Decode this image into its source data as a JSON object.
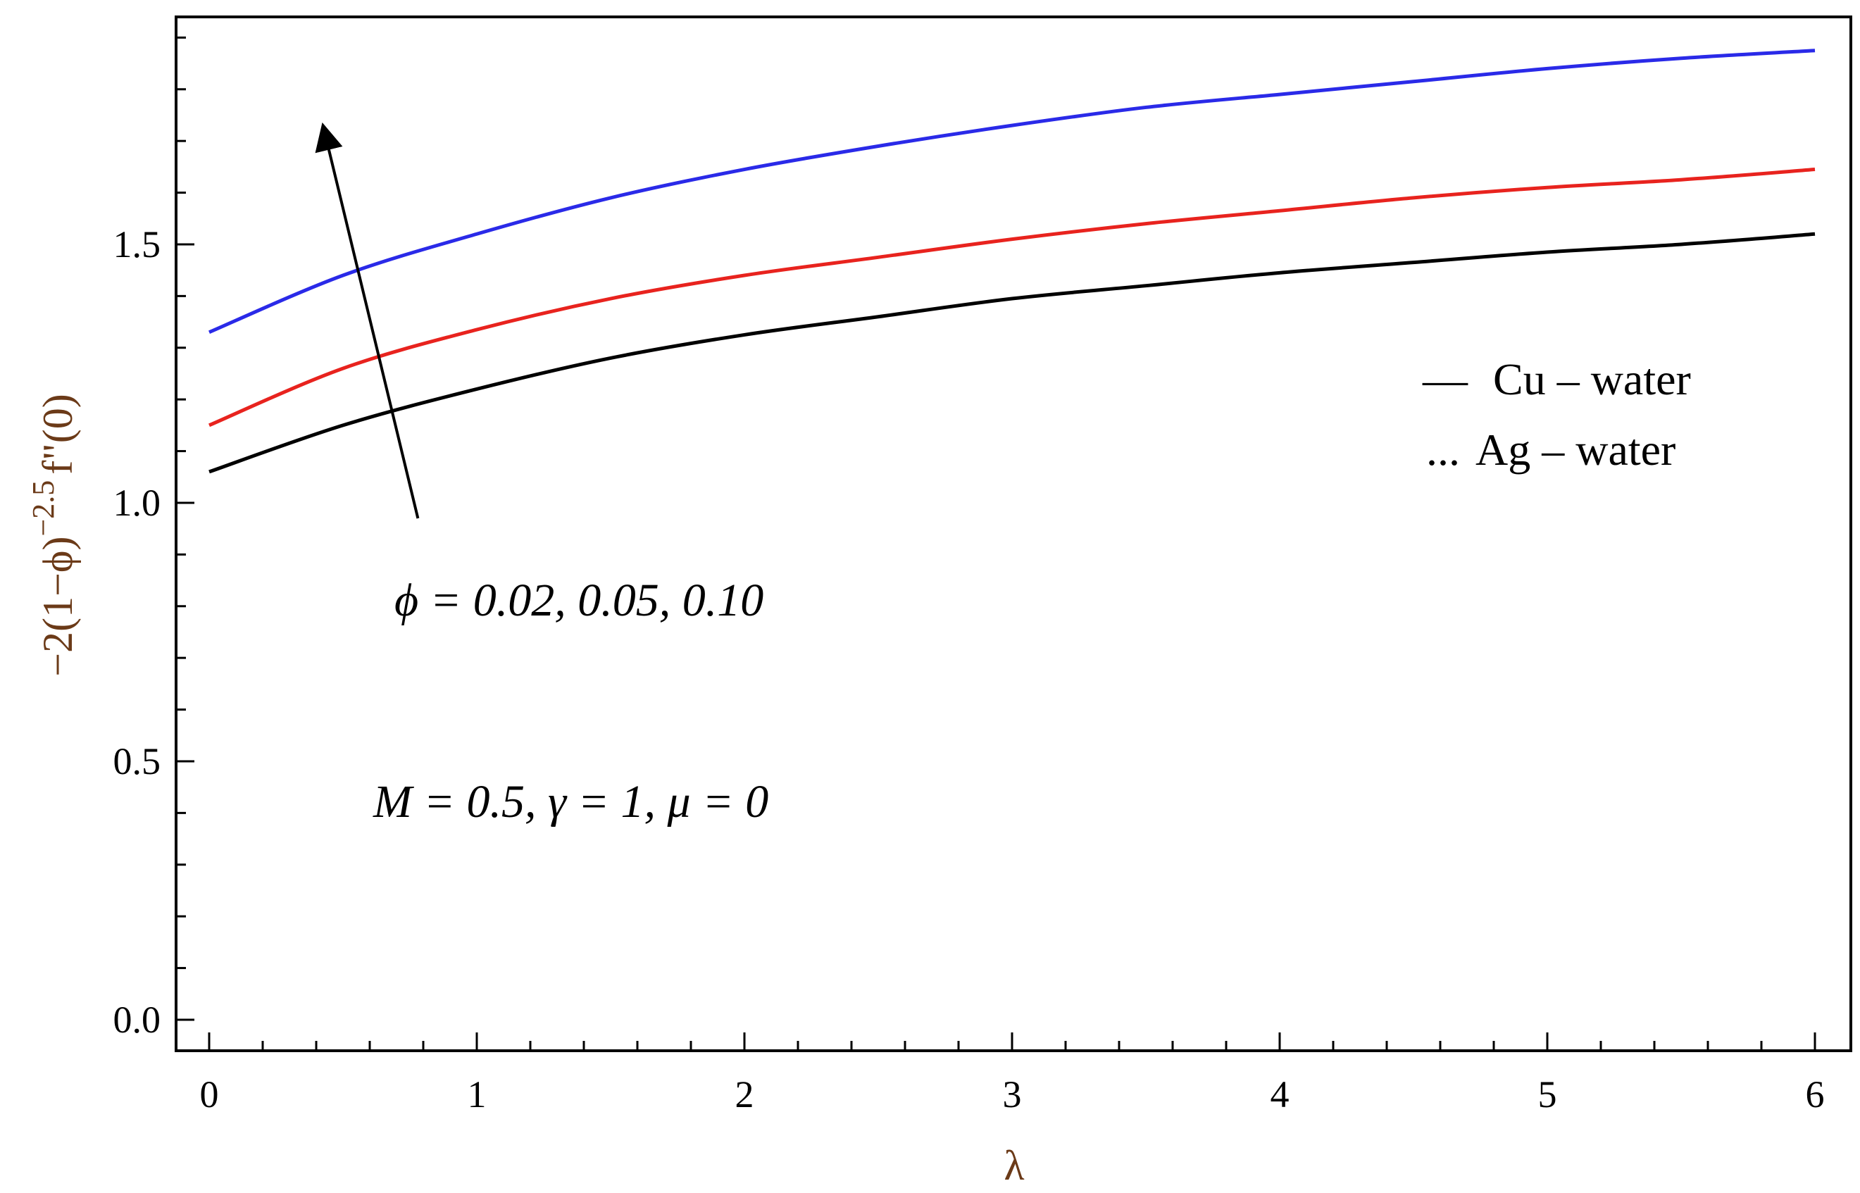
{
  "chart_data": {
    "type": "line",
    "title": "",
    "xlabel": "λ",
    "ylabel": "-2(1-ϕ)^-2.5 f''(0)",
    "ylabel_parts": {
      "base": "−2(1−ϕ)",
      "exponent": "−2.5",
      "tail": "f\"(0)"
    },
    "xlim": [
      0,
      6
    ],
    "ylim": [
      -0.06,
      1.94
    ],
    "x_ticks": [
      0,
      1,
      2,
      3,
      4,
      5,
      6
    ],
    "x_tick_labels": [
      "0",
      "1",
      "2",
      "3",
      "4",
      "5",
      "6"
    ],
    "y_ticks": [
      0.0,
      0.5,
      1.0,
      1.5
    ],
    "y_tick_labels": [
      "0.0",
      "0.5",
      "1.0",
      "1.5"
    ],
    "grid": false,
    "series": [
      {
        "color": "#000000",
        "x": [
          0,
          0.5,
          1,
          1.5,
          2,
          2.5,
          3,
          3.5,
          4,
          4.5,
          5,
          5.5,
          6
        ],
        "values": [
          1.06,
          1.15,
          1.22,
          1.28,
          1.325,
          1.36,
          1.395,
          1.42,
          1.445,
          1.465,
          1.485,
          1.5,
          1.52
        ]
      },
      {
        "color": "#e8231e",
        "x": [
          0,
          0.5,
          1,
          1.5,
          2,
          2.5,
          3,
          3.5,
          4,
          4.5,
          5,
          5.5,
          6
        ],
        "values": [
          1.15,
          1.26,
          1.335,
          1.395,
          1.44,
          1.475,
          1.51,
          1.54,
          1.565,
          1.59,
          1.61,
          1.625,
          1.645
        ]
      },
      {
        "color": "#2a2ae8",
        "x": [
          0,
          0.5,
          1,
          1.5,
          2,
          2.5,
          3,
          3.5,
          4,
          4.5,
          5,
          5.5,
          6
        ],
        "values": [
          1.33,
          1.44,
          1.52,
          1.59,
          1.645,
          1.69,
          1.73,
          1.765,
          1.79,
          1.815,
          1.84,
          1.86,
          1.875
        ]
      }
    ],
    "legend": {
      "position": "right",
      "entries": [
        {
          "marker": "—",
          "label": "Cu – water",
          "style": "solid"
        },
        {
          "marker": "...",
          "label": "Ag – water",
          "style": "dotted"
        }
      ]
    },
    "annotations": {
      "arrow": {
        "from": [
          0.78,
          0.97
        ],
        "to": [
          0.43,
          1.72
        ],
        "color": "#000000"
      },
      "phi_text": "ϕ = 0.02, 0.05, 0.10",
      "params_text": "M = 0.5, γ = 1, μ = 0"
    }
  }
}
